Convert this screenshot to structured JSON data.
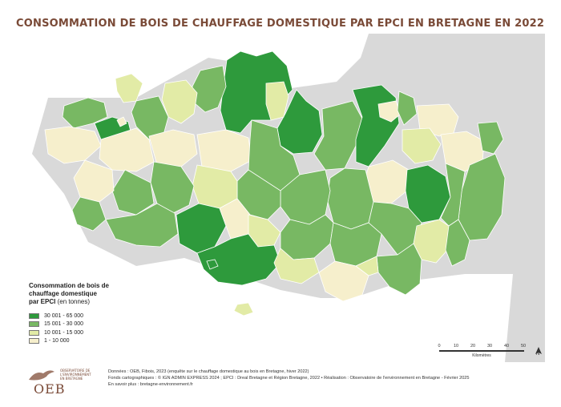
{
  "title": "CONSOMMATION DE BOIS DE CHAUFFAGE DOMESTIQUE PAR EPCI EN BRETAGNE EN 2022",
  "legend": {
    "title_line1": "Consommation de bois de",
    "title_line2": "chauffage domestique",
    "title_line3": "par EPCI",
    "unit": "(en tonnes)",
    "classes": [
      {
        "label": "30 001 - 65 000",
        "color": "#2e9a3c"
      },
      {
        "label": "15 001 - 30 000",
        "color": "#78b863"
      },
      {
        "label": "10 001 - 15 000",
        "color": "#e2eba6"
      },
      {
        "label": "1 - 10 000",
        "color": "#f6efcc"
      }
    ]
  },
  "scale": {
    "ticks": [
      "0",
      "10",
      "20",
      "30",
      "40",
      "50"
    ],
    "unit": "Kilomètres"
  },
  "north": "N",
  "logo": {
    "name": "OEB",
    "subtitle": "OBSERVATOIRE DE L'ENVIRONNEMENT EN BRETAGNE"
  },
  "sources": {
    "line1": "Données : OEB, Fibois, 2023 (enquête sur le chauffage domestique au bois en Bretagne, hiver 2022)",
    "line2": "Fonds cartographiques : © IGN ADMIN EXPRESS 2024 ; EPCI : Dreal Bretagne et Région Bretagne, 2022 • Réalisation : Observatoire de l'environnement en Bretagne - Février 2025",
    "line3": "En savoir plus : bretagne-environnement.fr"
  },
  "colors": {
    "title": "#7a4a37",
    "sea": "#ffffff",
    "land_outside": "#d9d9d9",
    "border": "#ffffff"
  }
}
